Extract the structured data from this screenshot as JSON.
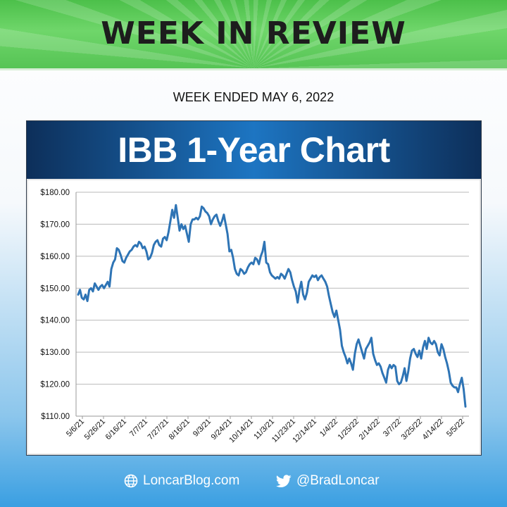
{
  "header": {
    "title": "WEEK IN REVIEW"
  },
  "subtitle": "WEEK ENDED MAY 6, 2022",
  "chart_banner": "IBB 1-Year Chart",
  "footer": {
    "website": "LoncarBlog.com",
    "website_icon": "globe-icon",
    "twitter": "@BradLoncar",
    "twitter_icon": "twitter-bird-icon"
  },
  "colors": {
    "header_green": "#5ccc58",
    "banner_navy": "#0d2f5a",
    "line": "#2e74b5",
    "footer_blue": "#3a9fe2"
  },
  "chart_data": {
    "type": "line",
    "title": "",
    "xlabel": "",
    "ylabel": "",
    "ylim": [
      110,
      180
    ],
    "y_ticks": [
      "$110.00",
      "$120.00",
      "$130.00",
      "$140.00",
      "$150.00",
      "$160.00",
      "$170.00",
      "$180.00"
    ],
    "x_ticks": [
      "5/6/21",
      "5/26/21",
      "6/16/21",
      "7/7/21",
      "7/27/21",
      "8/16/21",
      "9/3/21",
      "9/24/21",
      "10/14/21",
      "11/3/21",
      "11/23/21",
      "12/14/21",
      "1/4/22",
      "1/25/22",
      "2/14/22",
      "3/7/22",
      "3/25/22",
      "4/14/22",
      "5/5/22"
    ],
    "grid": true,
    "legend": "none",
    "series": [
      {
        "values": [
          148.0,
          149.5,
          147.0,
          146.5,
          148.0,
          146.0,
          149.5,
          150.0,
          149.0,
          151.5,
          150.5,
          149.5,
          150.5,
          151.0,
          150.0,
          151.0,
          152.0,
          150.5,
          156.0,
          158.0,
          159.0,
          162.5,
          162.0,
          160.5,
          158.5,
          158.0,
          159.5,
          160.5,
          161.5,
          162.0,
          163.0,
          163.5,
          163.0,
          164.5,
          164.0,
          162.5,
          163.0,
          161.5,
          159.0,
          159.5,
          161.0,
          163.5,
          164.5,
          165.0,
          163.5,
          163.0,
          165.5,
          166.0,
          165.0,
          167.5,
          171.0,
          174.5,
          172.0,
          176.0,
          172.0,
          168.0,
          170.0,
          168.5,
          169.5,
          167.0,
          164.5,
          170.0,
          171.5,
          171.5,
          172.0,
          171.5,
          172.5,
          175.5,
          175.0,
          174.0,
          173.5,
          172.5,
          170.0,
          171.5,
          172.5,
          173.0,
          171.0,
          169.5,
          171.0,
          173.0,
          170.0,
          167.0,
          161.5,
          162.0,
          159.5,
          156.0,
          154.5,
          154.0,
          156.0,
          155.5,
          154.5,
          155.0,
          156.5,
          157.5,
          158.0,
          157.5,
          159.5,
          159.0,
          157.5,
          160.0,
          161.5,
          164.5,
          158.0,
          157.5,
          155.0,
          154.0,
          153.5,
          153.0,
          153.5,
          153.0,
          154.5,
          154.0,
          153.0,
          154.5,
          156.0,
          155.0,
          152.5,
          150.5,
          149.0,
          145.5,
          149.5,
          152.0,
          148.0,
          146.5,
          148.5,
          152.0,
          153.0,
          154.0,
          153.5,
          154.0,
          152.5,
          153.5,
          154.0,
          153.0,
          152.0,
          150.5,
          147.5,
          145.0,
          142.5,
          141.0,
          143.0,
          140.0,
          137.0,
          132.0,
          130.0,
          128.5,
          126.5,
          128.0,
          126.5,
          124.5,
          129.5,
          132.5,
          134.0,
          132.0,
          130.0,
          128.0,
          131.0,
          132.0,
          133.0,
          134.5,
          129.5,
          127.5,
          126.0,
          126.5,
          125.5,
          123.5,
          122.0,
          120.5,
          124.5,
          126.0,
          125.0,
          126.0,
          125.5,
          121.0,
          120.0,
          120.5,
          122.5,
          125.0,
          121.0,
          124.0,
          128.0,
          130.5,
          131.0,
          129.5,
          128.5,
          130.5,
          128.0,
          131.5,
          133.5,
          131.0,
          134.5,
          133.0,
          132.5,
          133.5,
          132.5,
          130.0,
          129.0,
          132.5,
          131.0,
          128.5,
          126.5,
          124.0,
          120.5,
          119.5,
          119.0,
          119.0,
          117.5,
          120.0,
          122.0,
          118.5,
          113.0
        ]
      }
    ]
  }
}
